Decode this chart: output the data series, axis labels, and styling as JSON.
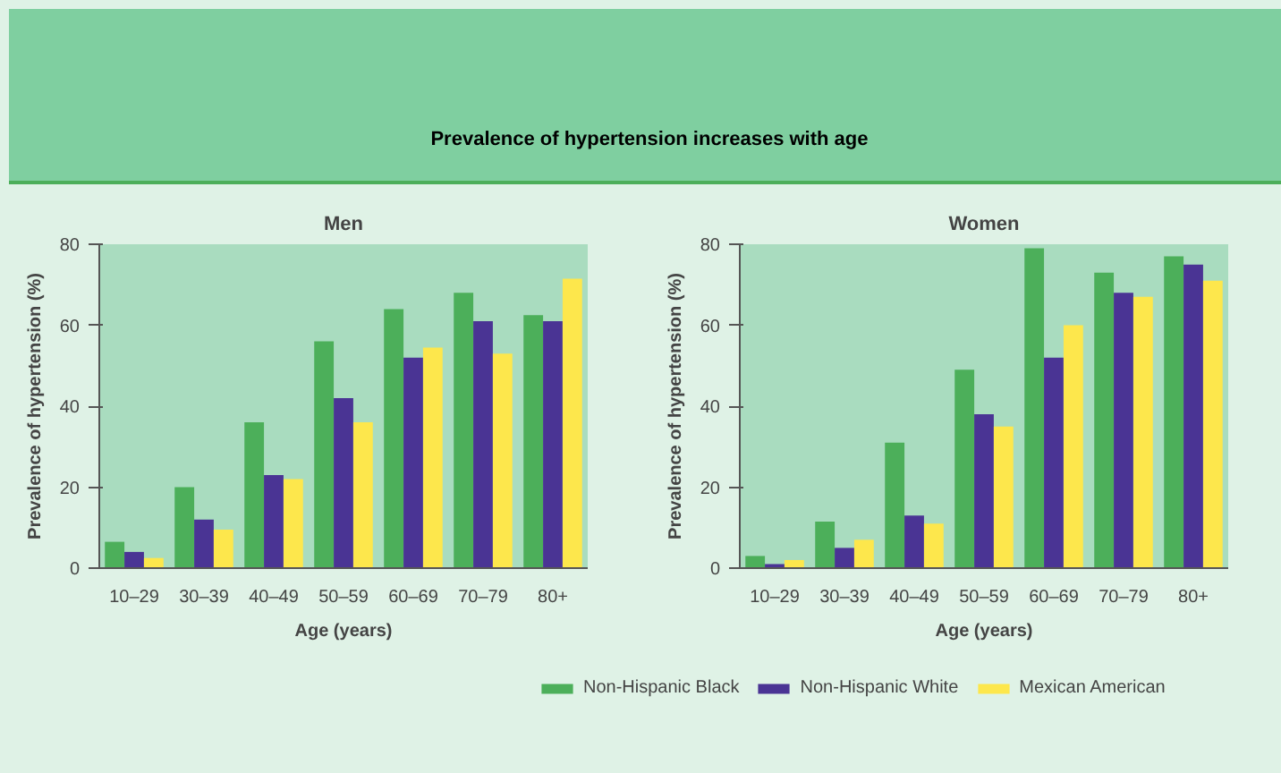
{
  "chart_data": [
    {
      "type": "bar",
      "title": "Men",
      "annotations": [
        "Prevalence of hypertension increases with age"
      ],
      "xlabel": "Age (years)",
      "ylabel": "Prevalence of hypertension (%)",
      "categories": [
        "10–29",
        "30–39",
        "40–49",
        "50–59",
        "60–69",
        "70–79",
        "80+"
      ],
      "series": [
        {
          "color": "#4caf5a",
          "values": [
            6.5,
            20,
            36,
            56,
            64,
            68,
            62.5
          ]
        },
        {
          "color": "#4a3494",
          "values": [
            4,
            12,
            23,
            42,
            52,
            61,
            61
          ]
        },
        {
          "color": "#fde74c",
          "values": [
            2.5,
            9.5,
            22,
            36,
            54.5,
            53,
            71.5
          ]
        }
      ],
      "ylim": [
        0,
        80
      ],
      "yticks": [
        0,
        20,
        40,
        60,
        80
      ],
      "grid": false
    },
    {
      "type": "bar",
      "title": "Women",
      "xlabel": "Age (years)",
      "ylabel": "Prevalence of hypertension (%)",
      "categories": [
        "10–29",
        "30–39",
        "40–49",
        "50–59",
        "60–69",
        "70–79",
        "80+"
      ],
      "series": [
        {
          "name": "Non-Hispanic Black",
          "color": "#4caf5a",
          "values": [
            3,
            11.5,
            31,
            49,
            79,
            73,
            77
          ]
        },
        {
          "name": "Non-Hispanic White",
          "color": "#4a3494",
          "values": [
            1,
            5,
            13,
            38,
            52,
            68,
            75
          ]
        },
        {
          "name": "Mexican American",
          "color": "#fde74c",
          "values": [
            2,
            7,
            11,
            35,
            60,
            67,
            71
          ]
        }
      ],
      "ylim": [
        0,
        80
      ],
      "yticks": [
        0,
        20,
        40,
        60,
        80
      ],
      "grid": false,
      "legend": "bottom"
    }
  ]
}
